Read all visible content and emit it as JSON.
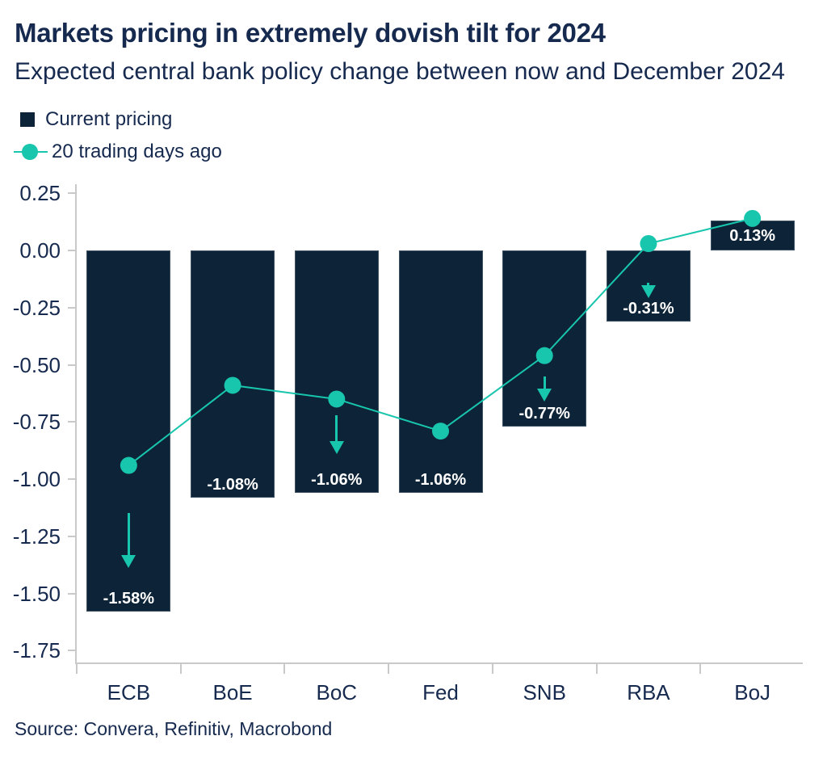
{
  "header": {
    "title": "Markets pricing in extremely dovish tilt for 2024",
    "subtitle": "Expected central bank policy change between now and December 2024"
  },
  "legend": {
    "items": [
      {
        "label": "Current pricing",
        "marker": "navy-square"
      },
      {
        "label": "20 trading days ago",
        "marker": "teal-circle-line"
      }
    ]
  },
  "source": "Source: Convera, Refinitiv, Macrobond",
  "colors": {
    "navy_text": "#16294e",
    "bar_fill": "#0d2337",
    "teal_accent": "#18c5ad",
    "axis_gray": "#c9c9c9",
    "bar_label_white": "#ffffff"
  },
  "chart_data": {
    "type": "bar",
    "categories": [
      "ECB",
      "BoE",
      "BoC",
      "Fed",
      "SNB",
      "RBA",
      "BoJ"
    ],
    "series": [
      {
        "name": "Current pricing",
        "type": "bar",
        "values": [
          -1.58,
          -1.08,
          -1.06,
          -1.06,
          -0.77,
          -0.31,
          0.13
        ],
        "data_labels": [
          "-1.58%",
          "-1.08%",
          "-1.06%",
          "-1.06%",
          "-0.77%",
          "-0.31%",
          "0.13%"
        ]
      },
      {
        "name": "20 trading days ago",
        "type": "line",
        "values": [
          -0.94,
          -0.59,
          -0.65,
          -0.79,
          -0.46,
          0.03,
          0.14
        ]
      }
    ],
    "annotations": {
      "down_arrows": [
        {
          "category": "ECB",
          "from": -1.15,
          "to": -1.39
        },
        {
          "category": "BoC",
          "from": -0.72,
          "to": -0.89
        },
        {
          "category": "SNB",
          "from": -0.55,
          "to": -0.66
        },
        {
          "category": "RBA",
          "from": -0.14,
          "to": -0.21
        }
      ]
    },
    "title": "Markets pricing in extremely dovish tilt for 2024",
    "xlabel": "",
    "ylabel": "",
    "ylim": [
      -1.81,
      0.29
    ],
    "yticks": [
      0.25,
      0.0,
      -0.25,
      -0.5,
      -0.75,
      -1.0,
      -1.25,
      -1.5,
      -1.75
    ],
    "ytick_labels": [
      "0.25",
      "0.00",
      "-0.25",
      "-0.50",
      "-0.75",
      "-1.00",
      "-1.25",
      "-1.50",
      "-1.75"
    ],
    "grid": false,
    "legend_position": "top-left"
  }
}
